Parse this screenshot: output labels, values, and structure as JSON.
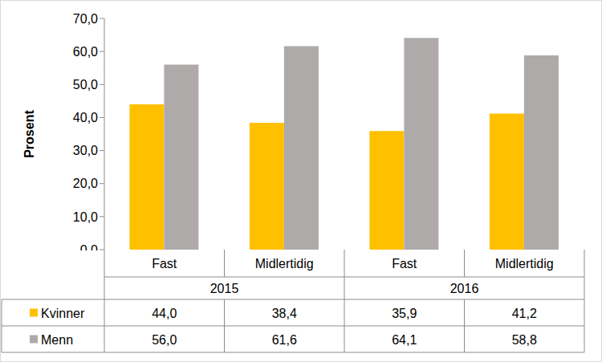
{
  "chart_data": {
    "type": "bar",
    "y_label": "Prosent",
    "categories": [
      "Fast",
      "Midlertidig",
      "Fast",
      "Midlertidig"
    ],
    "category_groups": [
      {
        "label": "2015",
        "size": 2
      },
      {
        "label": "2016",
        "size": 2
      }
    ],
    "series": [
      {
        "name": "Kvinner",
        "color": "#ffc000",
        "values": [
          44.0,
          38.4,
          35.9,
          41.2
        ],
        "value_labels": [
          "44,0",
          "38,4",
          "35,9",
          "41,2"
        ]
      },
      {
        "name": "Menn",
        "color": "#aeaaaa",
        "values": [
          56.0,
          61.6,
          64.1,
          58.8
        ],
        "value_labels": [
          "56,0",
          "61,6",
          "64,1",
          "58,8"
        ]
      }
    ],
    "ylim": [
      0,
      70
    ],
    "yticks": [
      {
        "value": 0,
        "label": "0,0"
      },
      {
        "value": 10,
        "label": "10,0"
      },
      {
        "value": 20,
        "label": "20,0"
      },
      {
        "value": 30,
        "label": "30,0"
      },
      {
        "value": 40,
        "label": "40,0"
      },
      {
        "value": 50,
        "label": "50,0"
      },
      {
        "value": 60,
        "label": "60,0"
      },
      {
        "value": 70,
        "label": "70,0"
      }
    ],
    "grid": false
  }
}
